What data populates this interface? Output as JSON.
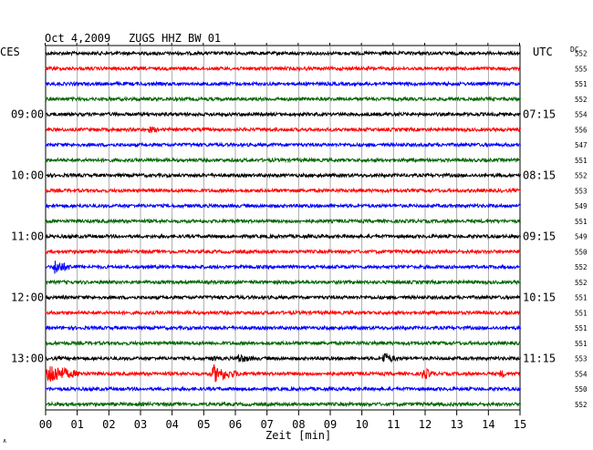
{
  "header": {
    "date": "Oct 4,2009",
    "station": "ZUGS HHZ BW 01",
    "left_zone": "CES",
    "right_zone": "UTC",
    "dc_label": "DC"
  },
  "chart_data": {
    "type": "line",
    "title": "Oct 4,2009   ZUGS HHZ BW 01",
    "xlabel": "Zeit [min]",
    "ylabel": "",
    "xlim": [
      0,
      15
    ],
    "x_ticks": [
      "00",
      "01",
      "02",
      "03",
      "04",
      "05",
      "06",
      "07",
      "08",
      "09",
      "10",
      "11",
      "12",
      "13",
      "14",
      "15"
    ],
    "left_hour_labels": [
      {
        "trace": 4,
        "label": "09:00"
      },
      {
        "trace": 8,
        "label": "10:00"
      },
      {
        "trace": 12,
        "label": "11:00"
      },
      {
        "trace": 16,
        "label": "12:00"
      },
      {
        "trace": 20,
        "label": "13:00"
      }
    ],
    "right_hour_labels": [
      {
        "trace": 4,
        "label": "07:15"
      },
      {
        "trace": 8,
        "label": "08:15"
      },
      {
        "trace": 12,
        "label": "09:15"
      },
      {
        "trace": 16,
        "label": "10:15"
      },
      {
        "trace": 20,
        "label": "11:15"
      }
    ],
    "dc_values": [
      552,
      555,
      551,
      552,
      554,
      556,
      547,
      551,
      552,
      553,
      549,
      551,
      549,
      550,
      552,
      552,
      551,
      551,
      551,
      551,
      553,
      554,
      550,
      552
    ],
    "trace_colors": [
      "#000000",
      "#ff0000",
      "#0000ff",
      "#006400"
    ],
    "grid": true,
    "events": [
      {
        "trace": 5,
        "minute": 3.2,
        "amplitude": 4,
        "duration": 1.2
      },
      {
        "trace": 14,
        "minute": 0.2,
        "amplitude": 9,
        "duration": 1.3
      },
      {
        "trace": 20,
        "minute": 5.2,
        "amplitude": 4,
        "duration": 0.6
      },
      {
        "trace": 20,
        "minute": 6.0,
        "amplitude": 6,
        "duration": 1.3
      },
      {
        "trace": 20,
        "minute": 10.6,
        "amplitude": 8,
        "duration": 1.0
      },
      {
        "trace": 21,
        "minute": 0.0,
        "amplitude": 14,
        "duration": 1.8
      },
      {
        "trace": 21,
        "minute": 5.2,
        "amplitude": 11,
        "duration": 1.7
      },
      {
        "trace": 21,
        "minute": 11.85,
        "amplitude": 8,
        "duration": 0.9
      },
      {
        "trace": 21,
        "minute": 14.3,
        "amplitude": 5,
        "duration": 0.7
      }
    ]
  },
  "footer": {
    "corner_mark": "∧"
  }
}
